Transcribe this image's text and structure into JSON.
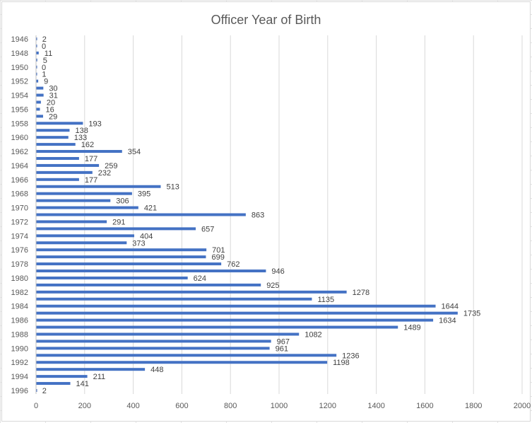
{
  "chart_data": {
    "type": "bar",
    "orientation": "horizontal",
    "title": "Officer Year of Birth",
    "xlabel": "",
    "ylabel": "",
    "xlim": [
      0,
      2000
    ],
    "xticks": [
      0,
      200,
      400,
      600,
      800,
      1000,
      1200,
      1400,
      1600,
      1800,
      2000
    ],
    "grid": true,
    "legend": "none",
    "bar_color": "#4472C4",
    "categories": [
      "1946",
      "1947",
      "1948",
      "1949",
      "1950",
      "1951",
      "1952",
      "1953",
      "1954",
      "1955",
      "1956",
      "1957",
      "1958",
      "1959",
      "1960",
      "1961",
      "1962",
      "1963",
      "1964",
      "1965",
      "1966",
      "1967",
      "1968",
      "1969",
      "1970",
      "1971",
      "1972",
      "1973",
      "1974",
      "1975",
      "1976",
      "1977",
      "1978",
      "1979",
      "1980",
      "1981",
      "1982",
      "1983",
      "1984",
      "1985",
      "1986",
      "1987",
      "1988",
      "1989",
      "1990",
      "1991",
      "1992",
      "1993",
      "1994",
      "1995",
      "1996"
    ],
    "category_tick_labels": [
      "1946",
      "",
      "1948",
      "",
      "1950",
      "",
      "1952",
      "",
      "1954",
      "",
      "1956",
      "",
      "1958",
      "",
      "1960",
      "",
      "1962",
      "",
      "1964",
      "",
      "1966",
      "",
      "1968",
      "",
      "1970",
      "",
      "1972",
      "",
      "1974",
      "",
      "1976",
      "",
      "1978",
      "",
      "1980",
      "",
      "1982",
      "",
      "1984",
      "",
      "1986",
      "",
      "1988",
      "",
      "1990",
      "",
      "1992",
      "",
      "1994",
      "",
      "1996"
    ],
    "values": [
      2,
      0,
      11,
      5,
      0,
      1,
      9,
      30,
      31,
      20,
      16,
      29,
      193,
      138,
      133,
      162,
      354,
      177,
      259,
      232,
      177,
      513,
      395,
      306,
      421,
      863,
      291,
      657,
      404,
      373,
      701,
      699,
      762,
      946,
      624,
      925,
      1278,
      1135,
      1644,
      1735,
      1634,
      1489,
      1082,
      967,
      961,
      1236,
      1198,
      448,
      211,
      141,
      2
    ]
  }
}
